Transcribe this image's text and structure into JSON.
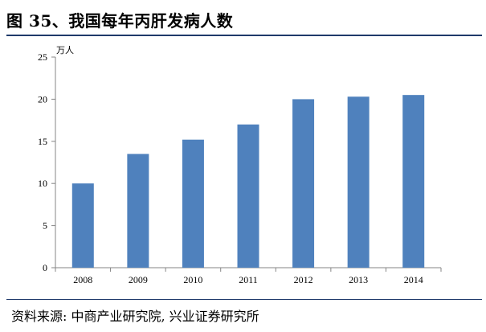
{
  "figure": {
    "title": "图 35、我国每年丙肝发病人数",
    "source": "资料来源: 中商产业研究院, 兴业证券研究所"
  },
  "colors": {
    "rule": "#1f3a6b",
    "bar": "#4f81bd",
    "axis": "#868686"
  },
  "chart_data": {
    "type": "bar",
    "title": "图 35、我国每年丙肝发病人数",
    "xlabel": "",
    "ylabel": "万人",
    "categories": [
      "2008",
      "2009",
      "2010",
      "2011",
      "2012",
      "2013",
      "2014"
    ],
    "values": [
      10.0,
      13.5,
      15.2,
      17.0,
      20.0,
      20.3,
      20.5
    ],
    "ylim": [
      0,
      25
    ],
    "yticks": [
      "0",
      "5",
      "10",
      "15",
      "20",
      "25"
    ],
    "grid": false,
    "legend": "none"
  }
}
